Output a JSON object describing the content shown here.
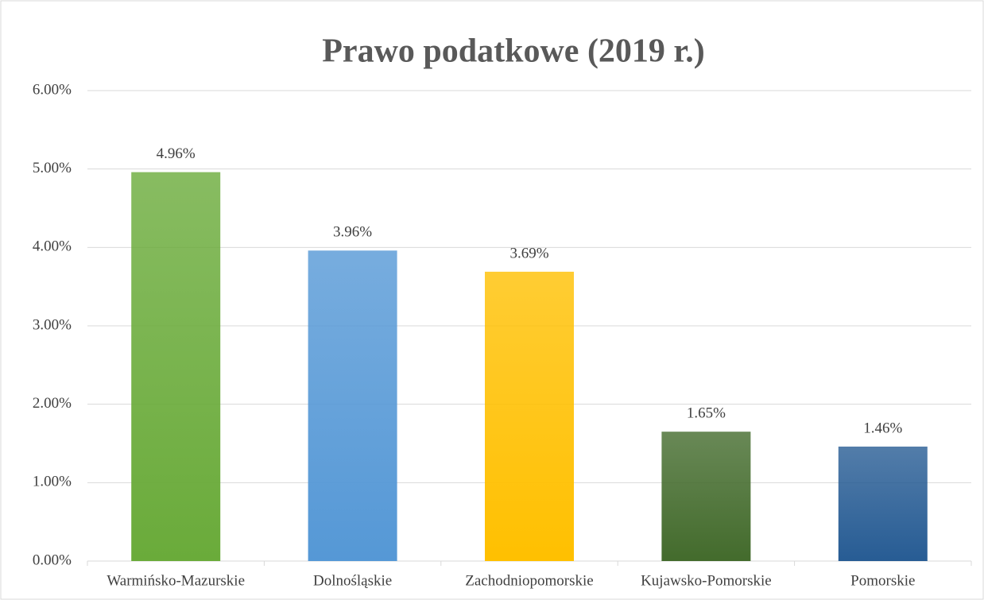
{
  "chart_data": {
    "type": "bar",
    "title": "Prawo podatkowe (2019 r.)",
    "categories": [
      "Warmińsko-Mazurskie",
      "Dolnośląskie",
      "Zachodniopomorskie",
      "Kujawsko-Pomorskie",
      "Pomorskie"
    ],
    "values": [
      4.96,
      3.96,
      3.69,
      1.65,
      1.46
    ],
    "value_labels": [
      "4.96%",
      "3.96%",
      "3.69%",
      "1.65%",
      "1.46%"
    ],
    "colors": [
      "#6aab3a",
      "#5598d6",
      "#ffc000",
      "#436b2c",
      "#275c94"
    ],
    "ylim": [
      0,
      6
    ],
    "yticks": [
      {
        "value": 0,
        "label": "0.00%"
      },
      {
        "value": 1,
        "label": "1.00%"
      },
      {
        "value": 2,
        "label": "2.00%"
      },
      {
        "value": 3,
        "label": "3.00%"
      },
      {
        "value": 4,
        "label": "4.00%"
      },
      {
        "value": 5,
        "label": "5.00%"
      },
      {
        "value": 6,
        "label": "6.00%"
      }
    ],
    "grid": true
  }
}
